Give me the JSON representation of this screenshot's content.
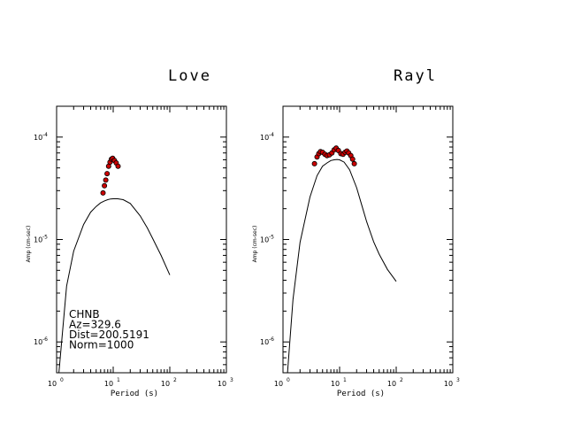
{
  "chart_data": [
    {
      "type": "scatter",
      "title": "Love",
      "xlabel": "Period (s)",
      "ylabel": "Amp (cm-sec)",
      "xscale": "log",
      "yscale": "log",
      "xlim": [
        1,
        1000
      ],
      "ylim": [
        5e-07,
        0.0002
      ],
      "xticks": [
        {
          "base": "10",
          "exp": "0"
        },
        {
          "base": "10",
          "exp": "1"
        },
        {
          "base": "10",
          "exp": "2"
        },
        {
          "base": "10",
          "exp": "3"
        }
      ],
      "yticks": [
        {
          "base": "10",
          "exp": "-6",
          "value": 1e-06
        },
        {
          "base": "10",
          "exp": "-5",
          "value": 1e-05
        },
        {
          "base": "10",
          "exp": "-4",
          "value": 0.0001
        }
      ],
      "annotations": [
        "CHNB",
        "Az=329.6",
        "Dist=200.5191",
        "Norm=1000"
      ],
      "series": [
        {
          "kind": "line",
          "color": "#000000",
          "x": [
            1.1,
            1.5,
            2,
            3,
            4,
            5,
            6,
            7,
            8,
            9,
            10,
            12,
            15,
            20,
            30,
            40,
            50,
            70,
            100
          ],
          "y": [
            5e-07,
            3.5e-06,
            7.7e-06,
            1.4e-05,
            1.85e-05,
            2.1e-05,
            2.28e-05,
            2.38e-05,
            2.45e-05,
            2.49e-05,
            2.5e-05,
            2.5e-05,
            2.45e-05,
            2.25e-05,
            1.7e-05,
            1.3e-05,
            1.02e-05,
            7e-06,
            4.5e-06
          ]
        },
        {
          "kind": "points",
          "color": "#cc0000",
          "edge": "#000000",
          "x": [
            6.6,
            7.0,
            7.4,
            7.8,
            8.3,
            8.8,
            9.3,
            9.8,
            10.5,
            11.3,
            12.2
          ],
          "y": [
            2.85e-05,
            3.35e-05,
            3.8e-05,
            4.4e-05,
            5.2e-05,
            5.7e-05,
            6.1e-05,
            6.2e-05,
            5.9e-05,
            5.6e-05,
            5.2e-05
          ]
        }
      ]
    },
    {
      "type": "scatter",
      "title": "Rayl",
      "xlabel": "Period (s)",
      "ylabel": "Amp (cm-sec)",
      "xscale": "log",
      "yscale": "log",
      "xlim": [
        1,
        1000
      ],
      "ylim": [
        5e-07,
        0.0002
      ],
      "xticks": [
        {
          "base": "10",
          "exp": "0"
        },
        {
          "base": "10",
          "exp": "1"
        },
        {
          "base": "10",
          "exp": "2"
        },
        {
          "base": "10",
          "exp": "3"
        }
      ],
      "yticks": [
        {
          "base": "10",
          "exp": "-6",
          "value": 1e-06
        },
        {
          "base": "10",
          "exp": "-5",
          "value": 1e-05
        },
        {
          "base": "10",
          "exp": "-4",
          "value": 0.0001
        }
      ],
      "series": [
        {
          "kind": "line",
          "color": "#000000",
          "x": [
            1.2,
            1.5,
            2,
            3,
            4,
            5,
            6,
            7,
            8,
            9,
            10,
            12,
            15,
            20,
            25,
            30,
            40,
            50,
            70,
            100
          ],
          "y": [
            5e-07,
            2.6e-06,
            9.4e-06,
            2.6e-05,
            4.2e-05,
            5.2e-05,
            5.6e-05,
            5.9e-05,
            6e-05,
            6.05e-05,
            6e-05,
            5.7e-05,
            4.8e-05,
            3.2e-05,
            2.1e-05,
            1.5e-05,
            9.5e-06,
            7.2e-06,
            5.1e-06,
            3.9e-06
          ]
        },
        {
          "kind": "points",
          "color": "#cc0000",
          "edge": "#000000",
          "x": [
            3.6,
            4.0,
            4.3,
            4.6,
            5.0,
            5.5,
            6.0,
            6.6,
            7.3,
            8.0,
            8.7,
            9.5,
            10.5,
            11.5,
            12.5,
            13.5,
            14.5,
            15.8,
            17.0,
            18.2
          ],
          "y": [
            5.5e-05,
            6.4e-05,
            6.9e-05,
            7.2e-05,
            7.1e-05,
            6.8e-05,
            6.6e-05,
            6.7e-05,
            7e-05,
            7.5e-05,
            7.8e-05,
            7.4e-05,
            6.9e-05,
            6.8e-05,
            7.1e-05,
            7.3e-05,
            7e-05,
            6.6e-05,
            6.1e-05,
            5.5e-05
          ]
        }
      ]
    }
  ]
}
